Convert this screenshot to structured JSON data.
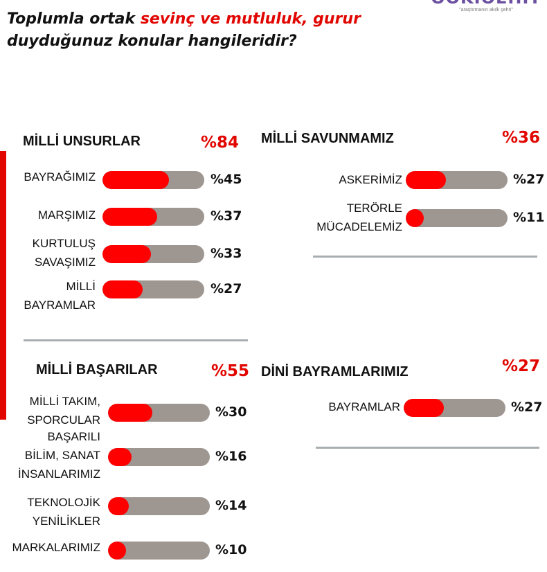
{
  "title": {
    "part1": "Toplumla ortak ",
    "highlight": "sevinç ve mutluluk, gurur",
    "part2": "duyduğunuz konular hangileridir?"
  },
  "logo": {
    "word": "OOKIOEHIT",
    "tagline": "\"araştırmanın akıllı şehri\""
  },
  "colors": {
    "accent": "#e10600",
    "bar_fill": "#ff0000",
    "bar_track": "#9e9691",
    "divider": "#a8aeb0"
  },
  "chart_data": [
    {
      "type": "bar",
      "title": "MİLLİ UNSURLAR",
      "total_label": "%84",
      "total": 84,
      "categories": [
        [
          "BAYRAĞIMIZ"
        ],
        [
          "MARŞIMIZ"
        ],
        [
          "KURTULUŞ",
          "SAVAŞIMIZ"
        ],
        [
          "MİLLİ",
          "BAYRAMLAR"
        ]
      ],
      "values": [
        45,
        37,
        33,
        27
      ],
      "value_labels": [
        "%45",
        "%37",
        "%33",
        "%27"
      ]
    },
    {
      "type": "bar",
      "title": "MİLLİ SAVUNMAMIZ",
      "total_label": "%36",
      "total": 36,
      "categories": [
        [
          "ASKERİMİZ"
        ],
        [
          "TERÖRLE",
          "MÜCADELEMİZ"
        ]
      ],
      "values": [
        27,
        11
      ],
      "value_labels": [
        "%27",
        "%11"
      ]
    },
    {
      "type": "bar",
      "title": "MİLLİ BAŞARILAR",
      "total_label": "%55",
      "total": 55,
      "categories": [
        [
          "MİLLİ TAKIM,",
          "SPORCULAR"
        ],
        [
          "BAŞARILI",
          "BİLİM, SANAT",
          "İNSANLARIMIZ"
        ],
        [
          "TEKNOLOJİK",
          "YENİLİKLER"
        ],
        [
          "MARKALARIMIZ"
        ]
      ],
      "values": [
        30,
        16,
        14,
        10
      ],
      "value_labels": [
        "%30",
        "%16",
        "%14",
        "%10"
      ]
    },
    {
      "type": "bar",
      "title": "DİNİ BAYRAMLARIMIZ",
      "total_label": "%27",
      "total": 27,
      "categories": [
        [
          "BAYRAMLAR"
        ]
      ],
      "values": [
        27
      ],
      "value_labels": [
        "%27"
      ]
    }
  ]
}
